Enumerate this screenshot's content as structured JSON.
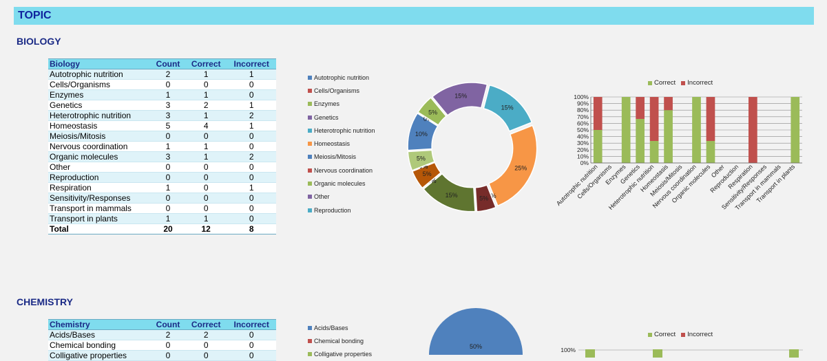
{
  "topic_label": "TOPIC",
  "colors": {
    "correct": "#9bbb59",
    "incorrect": "#c0504d",
    "slices": [
      "#4f81bd",
      "#c0504d",
      "#9bbb59",
      "#8064a2",
      "#4bacc6",
      "#f79646",
      "#4f81bd",
      "#c0504d",
      "#9bbb59",
      "#8064a2",
      "#4bacc6"
    ]
  },
  "biology": {
    "title": "BIOLOGY",
    "headers": [
      "Biology",
      "Count",
      "Correct",
      "Incorrect"
    ],
    "rows": [
      [
        "Autotrophic nutrition",
        "2",
        "1",
        "1"
      ],
      [
        "Cells/Organisms",
        "0",
        "0",
        "0"
      ],
      [
        "Enzymes",
        "1",
        "1",
        "0"
      ],
      [
        "Genetics",
        "3",
        "2",
        "1"
      ],
      [
        "Heterotrophic nutrition",
        "3",
        "1",
        "2"
      ],
      [
        "Homeostasis",
        "5",
        "4",
        "1"
      ],
      [
        "Meiosis/Mitosis",
        "0",
        "0",
        "0"
      ],
      [
        "Nervous coordination",
        "1",
        "1",
        "0"
      ],
      [
        "Organic molecules",
        "3",
        "1",
        "2"
      ],
      [
        "Other",
        "0",
        "0",
        "0"
      ],
      [
        "Reproduction",
        "0",
        "0",
        "0"
      ],
      [
        "Respiration",
        "1",
        "0",
        "1"
      ],
      [
        "Sensitivity/Responses",
        "0",
        "0",
        "0"
      ],
      [
        "Transport in mammals",
        "0",
        "0",
        "0"
      ],
      [
        "Transport in plants",
        "1",
        "1",
        "0"
      ]
    ],
    "total": [
      "Total",
      "20",
      "12",
      "8"
    ],
    "pie_legend": [
      "Autotrophic nutrition",
      "Cells/Organisms",
      "Enzymes",
      "Genetics",
      "Heterotrophic nutrition",
      "Homeostasis",
      "Meiosis/Mitosis",
      "Nervous coordination",
      "Organic molecules",
      "Other",
      "Reproduction"
    ]
  },
  "chemistry": {
    "title": "CHEMISTRY",
    "headers": [
      "Chemistry",
      "Count",
      "Correct",
      "Incorrect"
    ],
    "rows": [
      [
        "Acids/Bases",
        "2",
        "2",
        "0"
      ],
      [
        "Chemical bonding",
        "0",
        "0",
        "0"
      ],
      [
        "Colligative properties",
        "0",
        "0",
        "0"
      ]
    ],
    "pie_legend": [
      "Acids/Bases",
      "Chemical bonding",
      "Colligative properties"
    ],
    "pie_label": "50%"
  },
  "chart_data": [
    {
      "type": "pie",
      "categories": [
        "Autotrophic nutrition",
        "Cells/Organisms",
        "Enzymes",
        "Genetics",
        "Heterotrophic nutrition",
        "Homeostasis",
        "Meiosis/Mitosis",
        "Nervous coordination",
        "Organic molecules",
        "Other",
        "Reproduction",
        "Respiration",
        "Sensitivity/Responses",
        "Transport in mammals",
        "Transport in plants"
      ],
      "values": [
        10,
        0,
        5,
        15,
        15,
        25,
        0,
        5,
        15,
        0,
        0,
        5,
        0,
        0,
        5
      ],
      "labels": [
        "10%",
        "0%",
        "5%",
        "15%",
        "15%",
        "25%",
        "0%",
        "5%",
        "15%",
        "0%",
        "0%",
        "5%",
        "0%",
        "0%",
        "5%"
      ],
      "legend": "left"
    },
    {
      "type": "bar",
      "stacked": true,
      "categories": [
        "Autotrophic nutrition",
        "Cells/Organisms",
        "Enzymes",
        "Genetics",
        "Heterotrophic nutrition",
        "Homeostasis",
        "Meiosis/Mitosis",
        "Nervous coordination",
        "Organic molecules",
        "Other",
        "Reproduction",
        "Respiration",
        "Sensitivity/Responses",
        "Transport in mammals",
        "Transport in plants"
      ],
      "series": [
        {
          "name": "Correct",
          "values": [
            50,
            0,
            100,
            66.7,
            33.3,
            80,
            0,
            100,
            33.3,
            0,
            0,
            0,
            0,
            0,
            100
          ]
        },
        {
          "name": "Incorrect",
          "values": [
            50,
            0,
            0,
            33.3,
            66.7,
            20,
            0,
            0,
            66.7,
            0,
            0,
            100,
            0,
            0,
            0
          ]
        }
      ],
      "yticks": [
        "0%",
        "10%",
        "20%",
        "30%",
        "40%",
        "50%",
        "60%",
        "70%",
        "80%",
        "90%",
        "100%"
      ],
      "ylim": [
        0,
        100
      ],
      "legend": "top",
      "grid": true
    },
    {
      "type": "bar",
      "stacked": true,
      "series": [
        {
          "name": "Correct",
          "values": []
        },
        {
          "name": "Incorrect",
          "values": []
        }
      ],
      "yticks": [
        "100%"
      ],
      "ylim": [
        0,
        100
      ],
      "legend": "top"
    }
  ]
}
